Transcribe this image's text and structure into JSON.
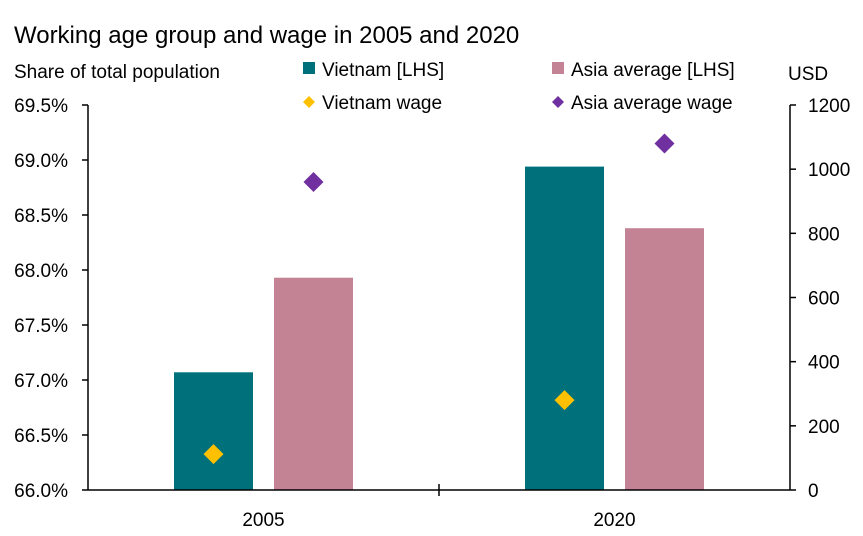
{
  "chart_data": {
    "type": "bar",
    "title": "Working age group and wage in 2005 and 2020",
    "ylabel_left": "Share of total population",
    "ylabel_right": "USD",
    "categories": [
      "2005",
      "2020"
    ],
    "ylim_left": [
      66.0,
      69.5
    ],
    "ylim_right": [
      0,
      1200
    ],
    "left_ticks": [
      "66.0%",
      "66.5%",
      "67.0%",
      "67.5%",
      "68.0%",
      "68.5%",
      "69.0%",
      "69.5%"
    ],
    "right_ticks": [
      "0",
      "200",
      "400",
      "600",
      "800",
      "1000",
      "1200"
    ],
    "bar_series": [
      {
        "name": "Vietnam [LHS]",
        "color": "#00707A",
        "values": [
          67.07,
          68.94
        ]
      },
      {
        "name": "Asia average [LHS]",
        "color": "#C48395",
        "values": [
          67.93,
          68.38
        ]
      }
    ],
    "marker_series": [
      {
        "name": "Vietnam wage",
        "color": "#FFC000",
        "marker": "diamond",
        "values": [
          112,
          280
        ]
      },
      {
        "name": "Asia average wage",
        "color": "#7030A0",
        "marker": "diamond",
        "values": [
          960,
          1080
        ]
      }
    ],
    "grid": false,
    "legend_position": "top"
  }
}
